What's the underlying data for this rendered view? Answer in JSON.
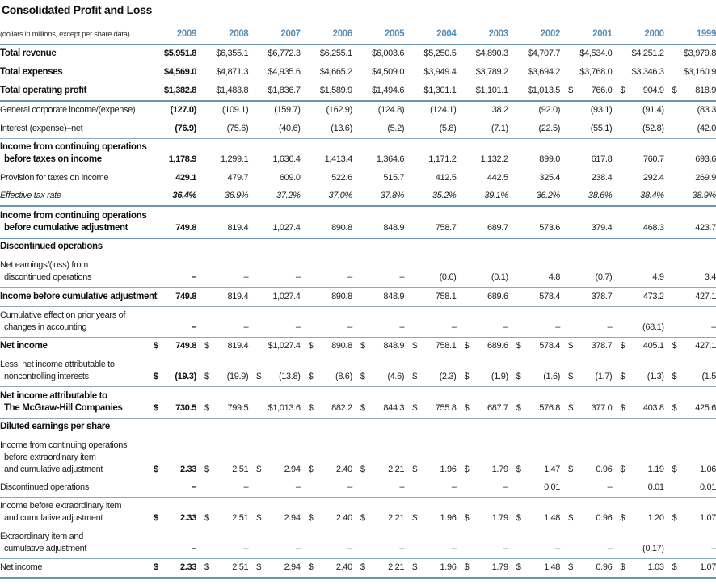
{
  "title": "Consolidated Profit and Loss",
  "header": {
    "label": "(dollars in millions, except per share data)",
    "years": [
      "2009",
      "2008",
      "2007",
      "2006",
      "2005",
      "2004",
      "2003",
      "2002",
      "2001",
      "2000",
      "1999"
    ]
  },
  "colors": {
    "year_header": "#5a8db5",
    "rule": "#6f95ad"
  },
  "rows": [
    {
      "label": [
        "Total revenue"
      ],
      "style": "bold",
      "values": [
        "$5,951.8",
        "$6,355.1",
        "$6,772.3",
        "$6,255.1",
        "$6,003.6",
        "$5,250.5",
        "$4,890.3",
        "$4,707.7",
        "$4,534.0",
        "$4,251.2",
        "$3,979.8"
      ]
    },
    {
      "label": [
        "Total expenses"
      ],
      "style": "bold",
      "values": [
        "$4,569.0",
        "$4,871.3",
        "$4,935.6",
        "$4,665.2",
        "$4,509.0",
        "$3,949.4",
        "$3,789.2",
        "$3,694.2",
        "$3,768.0",
        "$3,346.3",
        "$3,160.9"
      ]
    },
    {
      "label": [
        "Total operating profit"
      ],
      "style": "bold",
      "rule": "dark",
      "values": [
        "$1,382.8",
        "$1,483.8",
        "$1,836.7",
        "$1,589.9",
        "$1,494.6",
        "$1,301.1",
        "$1,101.1",
        "$1,013.5",
        "$ 766.0",
        "$ 904.9",
        "$ 818.9"
      ]
    },
    {
      "label": [
        "General corporate income/(expense)"
      ],
      "style": "normal",
      "values": [
        "(127.0)",
        "(109.1)",
        "(159.7)",
        "(162.9)",
        "(124.8)",
        "(124.1)",
        "38.2",
        "(92.0)",
        "(93.1)",
        "(91.4)",
        "(83.3"
      ]
    },
    {
      "label": [
        "Interest (expense)–net"
      ],
      "style": "normal",
      "rule": "rule",
      "values": [
        "(76.9)",
        "(75.6)",
        "(40.6)",
        "(13.6)",
        "(5.2)",
        "(5.8)",
        "(7.1)",
        "(22.5)",
        "(55.1)",
        "(52.8)",
        "(42.0"
      ]
    },
    {
      "label": [
        "Income from continuing operations",
        "before taxes on income"
      ],
      "style": "bold",
      "values": [
        "1,178.9",
        "1,299.1",
        "1,636.4",
        "1,413.4",
        "1,364.6",
        "1,171.2",
        "1,132.2",
        "899.0",
        "617.8",
        "760.7",
        "693.6"
      ]
    },
    {
      "label": [
        "Provision for taxes on income"
      ],
      "style": "normal",
      "values": [
        "429.1",
        "479.7",
        "609.0",
        "522.6",
        "515.7",
        "412.5",
        "442.5",
        "325.4",
        "238.4",
        "292.4",
        "269.9"
      ]
    },
    {
      "label": [
        "Effective tax rate"
      ],
      "style": "italic",
      "rule": "dark",
      "values": [
        "36.4%",
        "36.9%",
        "37.2%",
        "37.0%",
        "37.8%",
        "35.2%",
        "39.1%",
        "36.2%",
        "38.6%",
        "38.4%",
        "38.9%"
      ]
    },
    {
      "label": [
        "Income from continuing operations",
        "before cumulative adjustment"
      ],
      "style": "bold",
      "rule": "dark",
      "values": [
        "749.8",
        "819.4",
        "1,027.4",
        "890.8",
        "848.9",
        "758.7",
        "689.7",
        "573.6",
        "379.4",
        "468.3",
        "423.7"
      ]
    },
    {
      "label": [
        "Discontinued operations"
      ],
      "style": "section",
      "values": []
    },
    {
      "label": [
        "Net earnings/(loss) from",
        "discontinued operations"
      ],
      "style": "normal",
      "rule": "rule",
      "values": [
        "–",
        "–",
        "–",
        "–",
        "–",
        "(0.6)",
        "(0.1)",
        "4.8",
        "(0.7)",
        "4.9",
        "3.4"
      ]
    },
    {
      "label": [
        "Income before cumulative adjustment"
      ],
      "style": "bold",
      "rule": "rule",
      "values": [
        "749.8",
        "819.4",
        "1,027.4",
        "890.8",
        "848.9",
        "758.1",
        "689.6",
        "578.4",
        "378.7",
        "473.2",
        "427.1"
      ]
    },
    {
      "label": [
        "Cumulative effect on prior years of",
        "changes in accounting"
      ],
      "style": "normal",
      "rule": "rule",
      "values": [
        "–",
        "–",
        "–",
        "–",
        "–",
        "–",
        "–",
        "–",
        "–",
        "(68.1)",
        "–"
      ]
    },
    {
      "label": [
        "Net income"
      ],
      "style": "bold",
      "values": [
        "$ 749.8",
        "$ 819.4",
        "$1,027.4",
        "$ 890.8",
        "$ 848.9",
        "$ 758.1",
        "$ 689.6",
        "$ 578.4",
        "$ 378.7",
        "$ 405.1",
        "$ 427.1"
      ]
    },
    {
      "label": [
        "Less: net income attributable to",
        "noncontrolling interests"
      ],
      "style": "normal",
      "rule": "rule",
      "values": [
        "$ (19.3)",
        "$ (19.9)",
        "$ (13.8)",
        "$ (8.6)",
        "$ (4.6)",
        "$ (2.3)",
        "$ (1.9)",
        "$ (1.6)",
        "$ (1.7)",
        "$ (1.3)",
        "$ (1.5"
      ]
    },
    {
      "label": [
        "Net income attributable to",
        "The McGraw-Hill Companies"
      ],
      "style": "bold",
      "rule": "rule",
      "values": [
        "$ 730.5",
        "$ 799.5",
        "$1,013.6",
        "$ 882.2",
        "$ 844.3",
        "$ 755.8",
        "$ 687.7",
        "$ 576.8",
        "$ 377.0",
        "$ 403.8",
        "$ 425.6"
      ]
    },
    {
      "label": [
        "Diluted earnings per share"
      ],
      "style": "section",
      "values": []
    },
    {
      "label": [
        "Income from continuing operations",
        "before extraordinary item",
        "and cumulative adjustment"
      ],
      "style": "normal",
      "values": [
        "$ 2.33",
        "$ 2.51",
        "$ 2.94",
        "$ 2.40",
        "$ 2.21",
        "$ 1.96",
        "$ 1.79",
        "$ 1.47",
        "$ 0.96",
        "$ 1.19",
        "$ 1.06"
      ]
    },
    {
      "label": [
        "Discontinued operations"
      ],
      "style": "normal",
      "rule": "rule",
      "values": [
        "–",
        "–",
        "–",
        "–",
        "–",
        "–",
        "–",
        "0.01",
        "–",
        "0.01",
        "0.01"
      ]
    },
    {
      "label": [
        "Income before extraordinary item",
        "and cumulative adjustment"
      ],
      "style": "normal",
      "values": [
        "$ 2.33",
        "$ 2.51",
        "$ 2.94",
        "$ 2.40",
        "$ 2.21",
        "$ 1.96",
        "$ 1.79",
        "$ 1.48",
        "$ 0.96",
        "$ 1.20",
        "$ 1.07"
      ]
    },
    {
      "label": [
        "Extraordinary item and",
        "cumulative adjustment"
      ],
      "style": "normal",
      "rule": "rule",
      "values": [
        "–",
        "–",
        "–",
        "–",
        "–",
        "–",
        "–",
        "–",
        "–",
        "(0.17)",
        "–"
      ]
    },
    {
      "label": [
        "Net income"
      ],
      "style": "normal",
      "rule": "thick",
      "values": [
        "$ 2.33",
        "$ 2.51",
        "$ 2.94",
        "$ 2.40",
        "$ 2.21",
        "$ 1.96",
        "$ 1.79",
        "$ 1.48",
        "$ 0.96",
        "$ 1.03",
        "$ 1.07"
      ]
    }
  ]
}
